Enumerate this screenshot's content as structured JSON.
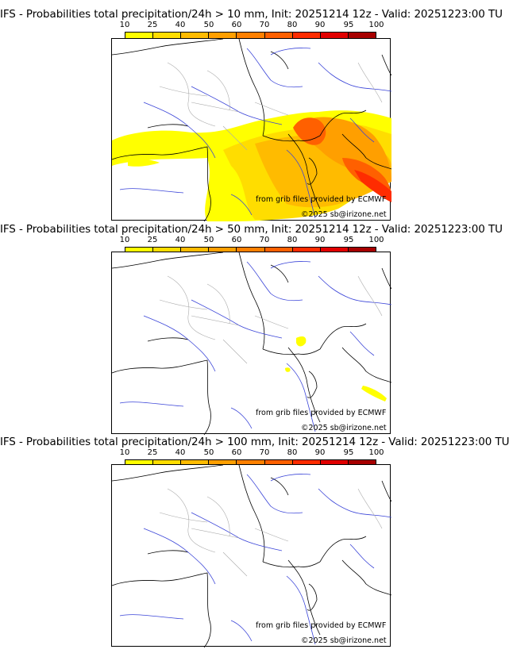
{
  "colorbar": {
    "levels": [
      "10",
      "25",
      "40",
      "50",
      "60",
      "70",
      "80",
      "90",
      "95",
      "100"
    ],
    "colors": [
      "#ffff00",
      "#ffdd00",
      "#ffbb00",
      "#ff9f00",
      "#ff8000",
      "#ff6000",
      "#ff2c00",
      "#e10000",
      "#a70000",
      "#6f0000"
    ]
  },
  "panels": [
    {
      "title": "IFS - Probabilities total precipitation/24h > 10 mm, Init: 20251214 12z - Valid: 20251223:00 TU",
      "threshold": "10 mm"
    },
    {
      "title": "IFS - Probabilities total precipitation/24h > 50 mm, Init: 20251214 12z - Valid: 20251223:00 TU",
      "threshold": "50 mm"
    },
    {
      "title": "IFS - Probabilities total precipitation/24h > 100 mm, Init: 20251214 12z - Valid: 20251223:00 TU",
      "threshold": "100 mm"
    }
  ],
  "credits": {
    "source": "from grib files provided by ECMWF",
    "copyright": "©2025 sb@irizone.net"
  }
}
